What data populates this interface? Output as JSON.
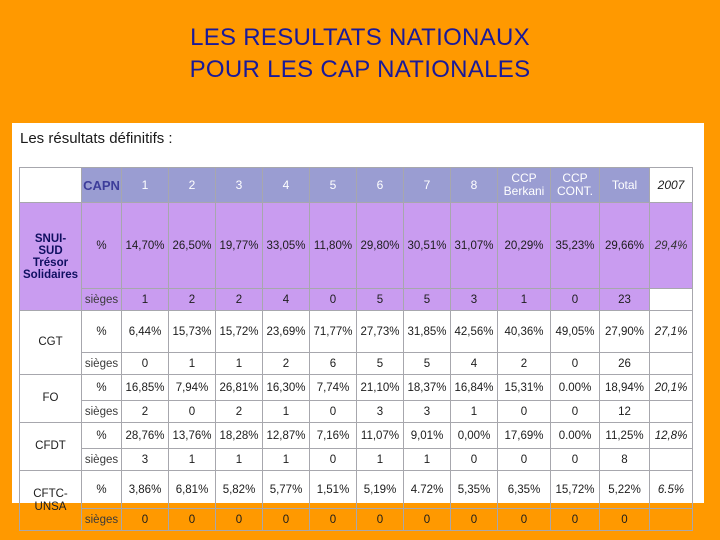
{
  "title": {
    "line1": "LES RESULTATS NATIONAUX",
    "line2": "POUR LES CAP NATIONALES"
  },
  "subtitle": "Les résultats définitifs :",
  "table": {
    "capn_label": "CAPN",
    "columns": [
      "1",
      "2",
      "3",
      "4",
      "5",
      "6",
      "7",
      "8"
    ],
    "col_ccp_berkani": [
      "CCP",
      "Berkani"
    ],
    "col_ccp_cont": [
      "CCP",
      "CONT."
    ],
    "col_total": "Total",
    "col_2007": "2007",
    "label_pct": "%",
    "label_sieges": "sièges",
    "rows": [
      {
        "org": [
          "SNUI-",
          "SUD",
          "Trésor",
          "Solidaires"
        ],
        "pct": [
          "14,70%",
          "26,50%",
          "19,77%",
          "33,05%",
          "11,80%",
          "29,80%",
          "30,51%",
          "31,07%",
          "20,29%",
          "35,23%",
          "29,66%"
        ],
        "pct_2007": "29,4%",
        "sieges": [
          "1",
          "2",
          "2",
          "4",
          "0",
          "5",
          "5",
          "3",
          "1",
          "0",
          "23"
        ]
      },
      {
        "org": [
          "CGT"
        ],
        "pct": [
          "6,44%",
          "15,73%",
          "15,72%",
          "23,69%",
          "71,77%",
          "27,73%",
          "31,85%",
          "42,56%",
          "40,36%",
          "49,05%",
          "27,90%"
        ],
        "pct_2007": "27,1%",
        "sieges": [
          "0",
          "1",
          "1",
          "2",
          "6",
          "5",
          "5",
          "4",
          "2",
          "0",
          "26"
        ]
      },
      {
        "org": [
          "FO"
        ],
        "pct": [
          "16,85%",
          "7,94%",
          "26,81%",
          "16,30%",
          "7,74%",
          "21,10%",
          "18,37%",
          "16,84%",
          "15,31%",
          "0.00%",
          "18,94%"
        ],
        "pct_2007": "20,1%",
        "sieges": [
          "2",
          "0",
          "2",
          "1",
          "0",
          "3",
          "3",
          "1",
          "0",
          "0",
          "12"
        ]
      },
      {
        "org": [
          "CFDT"
        ],
        "pct": [
          "28,76%",
          "13,76%",
          "18,28%",
          "12,87%",
          "7,16%",
          "11,07%",
          "9,01%",
          "0,00%",
          "17,69%",
          "0.00%",
          "11,25%"
        ],
        "pct_2007": "12,8%",
        "sieges": [
          "3",
          "1",
          "1",
          "1",
          "0",
          "1",
          "1",
          "0",
          "0",
          "0",
          "8"
        ]
      },
      {
        "org": [
          "CFTC-",
          "UNSA"
        ],
        "pct": [
          "3,86%",
          "6,81%",
          "5,82%",
          "5,77%",
          "1,51%",
          "5,19%",
          "4.72%",
          "5,35%",
          "6,35%",
          "15,72%",
          "5,22%"
        ],
        "pct_2007": "6.5%",
        "sieges": [
          "0",
          "0",
          "0",
          "0",
          "0",
          "0",
          "0",
          "0",
          "0",
          "0",
          "0"
        ]
      }
    ]
  }
}
